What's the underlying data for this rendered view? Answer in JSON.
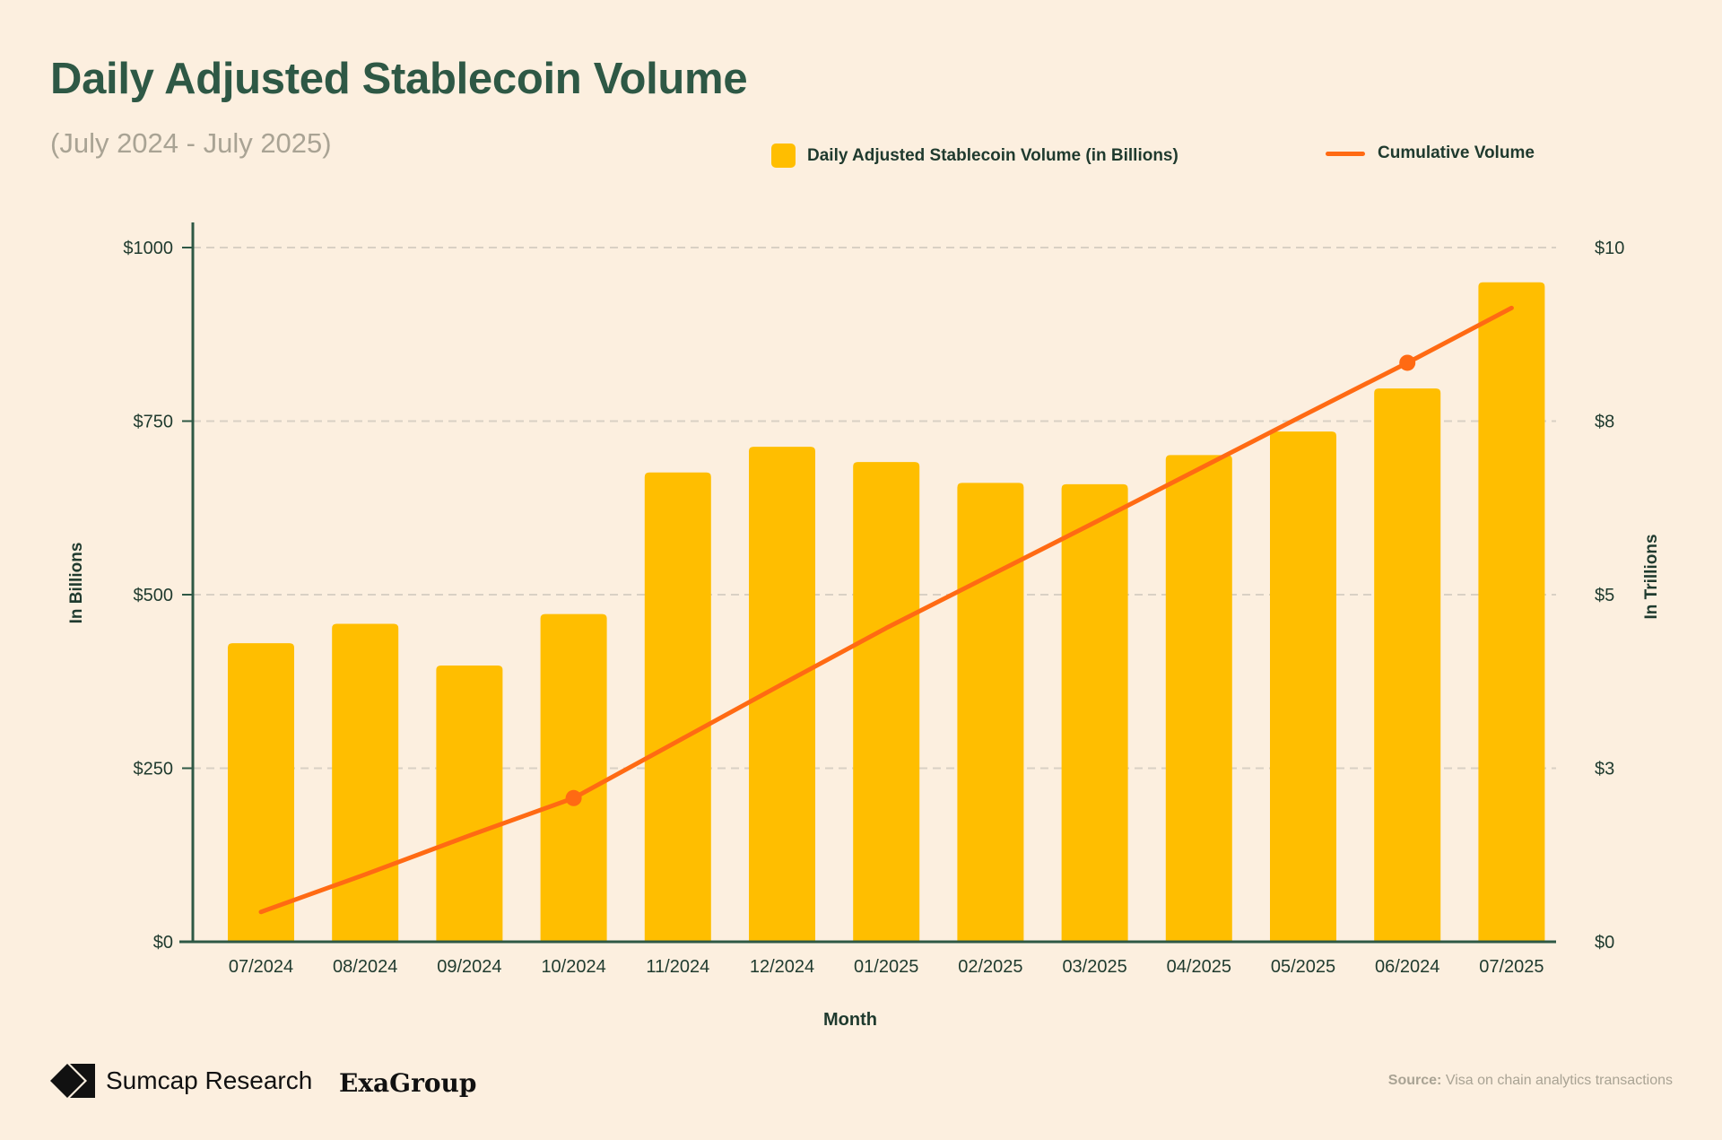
{
  "header": {
    "title": "Daily Adjusted Stablecoin Volume",
    "subtitle": "(July 2024 - July 2025)"
  },
  "legend": {
    "bar_label": "Daily Adjusted Stablecoin Volume (in Billions)",
    "line_label": "Cumulative Volume"
  },
  "footer": {
    "brand": "Sumcap Research",
    "partner": "ExaGroup",
    "source_label": "Source:",
    "source_text": "Visa on chain analytics transactions"
  },
  "colors": {
    "background": "#fcefdf",
    "bar": "#ffbe00",
    "line": "#ff6a13",
    "axis": "#2e5845",
    "title": "#2e5845",
    "grid": "#d9d0c4"
  },
  "chart_data": {
    "type": "bar",
    "title": "Daily Adjusted Stablecoin Volume",
    "subtitle": "(July 2024 - July 2025)",
    "xlabel": "Month",
    "ylabel": "In Billions",
    "y2label": "In Trillions",
    "ylim": [
      0,
      1000
    ],
    "y2lim": [
      0,
      10
    ],
    "yticks": [
      "$0",
      "$250",
      "$500",
      "$750",
      "$1000"
    ],
    "y2ticks": [
      "$0",
      "$3",
      "$5",
      "$8",
      "$10"
    ],
    "grid": true,
    "legend_position": "top-right",
    "categories": [
      "07/2024",
      "08/2024",
      "09/2024",
      "10/2024",
      "11/2024",
      "12/2024",
      "01/2025",
      "02/2025",
      "03/2025",
      "04/2025",
      "05/2025",
      "06/2024",
      "07/2025"
    ],
    "series": [
      {
        "name": "Daily Adjusted Stablecoin Volume (in Billions)",
        "type": "bar",
        "axis": "left",
        "values": [
          430,
          458,
          398,
          472,
          676,
          713,
          691,
          661,
          659,
          701,
          735,
          797,
          950
        ]
      },
      {
        "name": "Cumulative Volume",
        "type": "line",
        "axis": "right",
        "values": [
          0.43,
          0.97,
          1.53,
          2.07,
          2.89,
          3.71,
          4.52,
          5.28,
          6.04,
          6.81,
          7.58,
          8.34,
          9.13
        ],
        "markers": [
          3,
          11
        ]
      }
    ]
  }
}
